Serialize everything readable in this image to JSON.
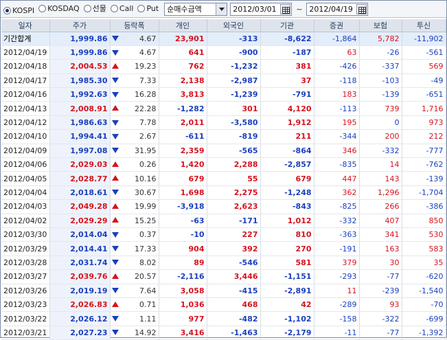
{
  "toolbar": {
    "market_options": [
      {
        "label": "KOSPI",
        "selected": true
      },
      {
        "label": "KOSDAQ",
        "selected": false
      },
      {
        "label": "선물",
        "selected": false
      },
      {
        "label": "Call",
        "selected": false
      },
      {
        "label": "Put",
        "selected": false
      }
    ],
    "metric_select": "순매수금액",
    "start_date": "2012/03/01",
    "date_separator": "~",
    "end_date": "2012/04/19"
  },
  "table": {
    "headers": [
      "일자",
      "주가",
      "등락폭",
      "개인",
      "외국인",
      "기관",
      "증권",
      "보험",
      "투신"
    ],
    "colors": {
      "red": "#d6121f",
      "blue": "#1a3fbf"
    },
    "rows": [
      {
        "date": "기간합계",
        "price": "1,999.86",
        "dir": "down",
        "chg": "4.67",
        "indiv": "23,901",
        "foreign": "-313",
        "inst": "-8,622",
        "sec": "-1,864",
        "ins": "5,782",
        "trust": "-11,902",
        "total": true
      },
      {
        "date": "2012/04/19",
        "price": "1,999.86",
        "dir": "down",
        "chg": "4.67",
        "indiv": "641",
        "foreign": "-900",
        "inst": "-187",
        "sec": "63",
        "ins": "-26",
        "trust": "-561"
      },
      {
        "date": "2012/04/18",
        "price": "2,004.53",
        "dir": "up",
        "chg": "19.23",
        "indiv": "762",
        "foreign": "-1,232",
        "inst": "381",
        "sec": "-426",
        "ins": "-337",
        "trust": "569"
      },
      {
        "date": "2012/04/17",
        "price": "1,985.30",
        "dir": "down",
        "chg": "7.33",
        "indiv": "2,138",
        "foreign": "-2,987",
        "inst": "37",
        "sec": "-118",
        "ins": "-103",
        "trust": "-49"
      },
      {
        "date": "2012/04/16",
        "price": "1,992.63",
        "dir": "down",
        "chg": "16.28",
        "indiv": "3,813",
        "foreign": "-1,239",
        "inst": "-791",
        "sec": "183",
        "ins": "-139",
        "trust": "-651"
      },
      {
        "date": "2012/04/13",
        "price": "2,008.91",
        "dir": "up",
        "chg": "22.28",
        "indiv": "-1,282",
        "foreign": "301",
        "inst": "4,120",
        "sec": "-113",
        "ins": "739",
        "trust": "1,716"
      },
      {
        "date": "2012/04/12",
        "price": "1,986.63",
        "dir": "down",
        "chg": "7.78",
        "indiv": "2,011",
        "foreign": "-3,580",
        "inst": "1,912",
        "sec": "195",
        "ins": "0",
        "trust": "973"
      },
      {
        "date": "2012/04/10",
        "price": "1,994.41",
        "dir": "down",
        "chg": "2.67",
        "indiv": "-611",
        "foreign": "-819",
        "inst": "211",
        "sec": "-344",
        "ins": "200",
        "trust": "212"
      },
      {
        "date": "2012/04/09",
        "price": "1,997.08",
        "dir": "down",
        "chg": "31.95",
        "indiv": "2,359",
        "foreign": "-565",
        "inst": "-864",
        "sec": "346",
        "ins": "-332",
        "trust": "-777"
      },
      {
        "date": "2012/04/06",
        "price": "2,029.03",
        "dir": "up",
        "chg": "0.26",
        "indiv": "1,420",
        "foreign": "2,288",
        "inst": "-2,857",
        "sec": "-835",
        "ins": "14",
        "trust": "-762"
      },
      {
        "date": "2012/04/05",
        "price": "2,028.77",
        "dir": "up",
        "chg": "10.16",
        "indiv": "679",
        "foreign": "55",
        "inst": "679",
        "sec": "447",
        "ins": "143",
        "trust": "-139"
      },
      {
        "date": "2012/04/04",
        "price": "2,018.61",
        "dir": "down",
        "chg": "30.67",
        "indiv": "1,698",
        "foreign": "2,275",
        "inst": "-1,248",
        "sec": "362",
        "ins": "1,296",
        "trust": "-1,704"
      },
      {
        "date": "2012/04/03",
        "price": "2,049.28",
        "dir": "up",
        "chg": "19.99",
        "indiv": "-3,918",
        "foreign": "2,623",
        "inst": "-843",
        "sec": "-825",
        "ins": "266",
        "trust": "-386"
      },
      {
        "date": "2012/04/02",
        "price": "2,029.29",
        "dir": "up",
        "chg": "15.25",
        "indiv": "-63",
        "foreign": "-171",
        "inst": "1,012",
        "sec": "-332",
        "ins": "407",
        "trust": "850"
      },
      {
        "date": "2012/03/30",
        "price": "2,014.04",
        "dir": "down",
        "chg": "0.37",
        "indiv": "-10",
        "foreign": "227",
        "inst": "810",
        "sec": "-363",
        "ins": "341",
        "trust": "530"
      },
      {
        "date": "2012/03/29",
        "price": "2,014.41",
        "dir": "down",
        "chg": "17.33",
        "indiv": "904",
        "foreign": "392",
        "inst": "270",
        "sec": "-191",
        "ins": "163",
        "trust": "583"
      },
      {
        "date": "2012/03/28",
        "price": "2,031.74",
        "dir": "down",
        "chg": "8.02",
        "indiv": "89",
        "foreign": "-546",
        "inst": "581",
        "sec": "379",
        "ins": "30",
        "trust": "35"
      },
      {
        "date": "2012/03/27",
        "price": "2,039.76",
        "dir": "up",
        "chg": "20.57",
        "indiv": "-2,116",
        "foreign": "3,446",
        "inst": "-1,151",
        "sec": "-293",
        "ins": "-77",
        "trust": "-620"
      },
      {
        "date": "2012/03/26",
        "price": "2,019.19",
        "dir": "down",
        "chg": "7.64",
        "indiv": "3,058",
        "foreign": "-415",
        "inst": "-2,891",
        "sec": "11",
        "ins": "-239",
        "trust": "-1,540"
      },
      {
        "date": "2012/03/23",
        "price": "2,026.83",
        "dir": "up",
        "chg": "0.71",
        "indiv": "1,036",
        "foreign": "468",
        "inst": "42",
        "sec": "-289",
        "ins": "93",
        "trust": "-70"
      },
      {
        "date": "2012/03/22",
        "price": "2,026.12",
        "dir": "down",
        "chg": "1.11",
        "indiv": "977",
        "foreign": "-482",
        "inst": "-1,102",
        "sec": "-158",
        "ins": "-322",
        "trust": "-699"
      },
      {
        "date": "2012/03/21",
        "price": "2,027.23",
        "dir": "down",
        "chg": "14.92",
        "indiv": "3,416",
        "foreign": "-1,463",
        "inst": "-2,179",
        "sec": "-11",
        "ins": "-77",
        "trust": "-1,392"
      }
    ]
  }
}
